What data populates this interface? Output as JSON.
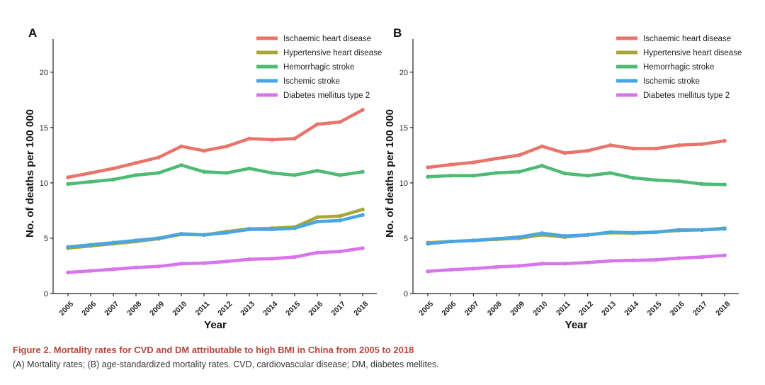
{
  "colors": {
    "ischaemic": "#e8746a",
    "hypertensive": "#a7a63a",
    "hemorrhagic": "#4dbb73",
    "ischemic": "#4aa6e0",
    "diabetes": "#d874ec"
  },
  "chart_data": [
    {
      "type": "line",
      "panel_label": "A",
      "xlabel": "Year",
      "ylabel": "No. of deaths per 100 000",
      "ylim": [
        0,
        23
      ],
      "yticks": [
        0,
        5,
        10,
        15,
        20
      ],
      "categories": [
        "2005",
        "2006",
        "2007",
        "2008",
        "2009",
        "2010",
        "2011",
        "2012",
        "2013",
        "2014",
        "2015",
        "2016",
        "2017",
        "2018"
      ],
      "grid": false,
      "legend_position": "top-right",
      "series": [
        {
          "name": "Ischaemic heart disease",
          "color_key": "ischaemic",
          "values": [
            10.5,
            10.9,
            11.3,
            11.8,
            12.3,
            13.3,
            12.9,
            13.3,
            14.0,
            13.9,
            14.0,
            15.3,
            15.5,
            16.6
          ]
        },
        {
          "name": "Hypertensive heart disease",
          "color_key": "hypertensive",
          "values": [
            4.1,
            4.3,
            4.5,
            4.7,
            4.95,
            5.35,
            5.3,
            5.6,
            5.85,
            5.9,
            6.0,
            6.9,
            7.0,
            7.6
          ]
        },
        {
          "name": "Hemorrhagic stroke",
          "color_key": "hemorrhagic",
          "values": [
            9.9,
            10.1,
            10.3,
            10.7,
            10.9,
            11.6,
            11.0,
            10.9,
            11.3,
            10.9,
            10.7,
            11.1,
            10.7,
            11.0
          ]
        },
        {
          "name": "Ischemic stroke",
          "color_key": "ischemic",
          "values": [
            4.2,
            4.4,
            4.6,
            4.8,
            5.0,
            5.4,
            5.3,
            5.5,
            5.8,
            5.8,
            5.9,
            6.5,
            6.6,
            7.1
          ]
        },
        {
          "name": "Diabetes mellitus type 2",
          "color_key": "diabetes",
          "values": [
            1.9,
            2.05,
            2.2,
            2.35,
            2.45,
            2.7,
            2.75,
            2.9,
            3.1,
            3.15,
            3.3,
            3.7,
            3.8,
            4.1
          ]
        }
      ]
    },
    {
      "type": "line",
      "panel_label": "B",
      "xlabel": "Year",
      "ylabel": "No. of deaths per 100 000",
      "ylim": [
        0,
        23
      ],
      "yticks": [
        0,
        5,
        10,
        15,
        20
      ],
      "categories": [
        "2005",
        "2006",
        "2007",
        "2008",
        "2009",
        "2010",
        "2011",
        "2012",
        "2013",
        "2014",
        "2015",
        "2016",
        "2017",
        "2018"
      ],
      "grid": false,
      "legend_position": "top-right",
      "series": [
        {
          "name": "Ischaemic heart disease",
          "color_key": "ischaemic",
          "values": [
            11.4,
            11.65,
            11.85,
            12.2,
            12.5,
            13.3,
            12.7,
            12.9,
            13.4,
            13.1,
            13.1,
            13.4,
            13.5,
            13.8
          ]
        },
        {
          "name": "Hypertensive heart disease",
          "color_key": "hypertensive",
          "values": [
            4.6,
            4.7,
            4.8,
            4.9,
            5.0,
            5.3,
            5.1,
            5.3,
            5.5,
            5.45,
            5.55,
            5.7,
            5.75,
            5.9
          ]
        },
        {
          "name": "Hemorrhagic stroke",
          "color_key": "hemorrhagic",
          "values": [
            10.55,
            10.65,
            10.65,
            10.9,
            11.0,
            11.55,
            10.85,
            10.65,
            10.9,
            10.45,
            10.25,
            10.15,
            9.9,
            9.85
          ]
        },
        {
          "name": "Ischemic stroke",
          "color_key": "ischemic",
          "values": [
            4.5,
            4.7,
            4.8,
            4.95,
            5.1,
            5.45,
            5.2,
            5.3,
            5.55,
            5.5,
            5.55,
            5.75,
            5.75,
            5.85
          ]
        },
        {
          "name": "Diabetes mellitus type 2",
          "color_key": "diabetes",
          "values": [
            2.0,
            2.15,
            2.25,
            2.4,
            2.5,
            2.7,
            2.7,
            2.8,
            2.95,
            3.0,
            3.05,
            3.2,
            3.3,
            3.45
          ]
        }
      ]
    }
  ],
  "caption": {
    "title": "Figure 2. Mortality rates for CVD and DM attributable to high BMI in China from 2005 to 2018",
    "description": "(A) Mortality rates; (B) age-standardized mortality rates. CVD, cardiovascular disease; DM, diabetes mellites."
  }
}
